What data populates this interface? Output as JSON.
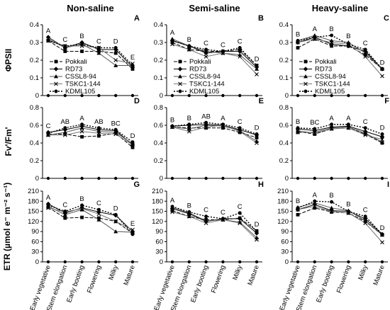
{
  "column_titles": [
    "Non-saline",
    "Semi-saline",
    "Heavy-saline"
  ],
  "row_labels": [
    "ΦPSII",
    "Fv'/Fm'",
    "ETR (µmol e⁻ m⁻² s⁻¹)"
  ],
  "categories": [
    "Early vegetative",
    "Stem elongation",
    "Early booting",
    "Flowering",
    "Milky",
    "Mature"
  ],
  "legend": {
    "entries": [
      "Pokkali",
      "RD73",
      "CSSL8-94",
      "TSKC1-144",
      "KDML105"
    ],
    "markers": [
      "square",
      "diamond",
      "triangle",
      "x",
      "circle"
    ],
    "dashes": [
      "5,2",
      "",
      "",
      "",
      "2,2"
    ]
  },
  "chart_data": [
    {
      "type": "line",
      "panel": "A",
      "row": 0,
      "col": 0,
      "ylim": [
        0,
        0.4
      ],
      "yticks": [
        0,
        0.1,
        0.2,
        0.3,
        0.4
      ],
      "sig_letters": [
        "A",
        "C",
        "B",
        "C",
        "D",
        "E"
      ],
      "legend": true,
      "series": [
        {
          "name": "Pokkali",
          "values": [
            0.31,
            0.25,
            0.25,
            0.25,
            0.24,
            0.15
          ]
        },
        {
          "name": "RD73",
          "values": [
            0.33,
            0.27,
            0.3,
            0.26,
            0.26,
            0.16
          ]
        },
        {
          "name": "CSSL8-94",
          "values": [
            0.32,
            0.27,
            0.29,
            0.24,
            0.17,
            0.17
          ]
        },
        {
          "name": "TSKC1-144",
          "values": [
            0.31,
            0.28,
            0.28,
            0.27,
            0.2,
            0.18
          ]
        },
        {
          "name": "KDML105",
          "values": [
            0.31,
            0.28,
            0.29,
            0.27,
            0.27,
            0.17
          ]
        }
      ]
    },
    {
      "type": "line",
      "panel": "B",
      "row": 0,
      "col": 1,
      "ylim": [
        0,
        0.4
      ],
      "yticks": [
        0,
        0.1,
        0.2,
        0.3,
        0.4
      ],
      "sig_letters": [
        "A",
        "B",
        "C",
        "C",
        "C",
        "D"
      ],
      "legend": true,
      "series": [
        {
          "name": "Pokkali",
          "values": [
            0.3,
            0.26,
            0.25,
            0.25,
            0.26,
            0.17
          ]
        },
        {
          "name": "RD73",
          "values": [
            0.31,
            0.28,
            0.24,
            0.25,
            0.25,
            0.16
          ]
        },
        {
          "name": "CSSL8-94",
          "values": [
            0.32,
            0.28,
            0.25,
            0.24,
            0.23,
            0.15
          ]
        },
        {
          "name": "TSKC1-144",
          "values": [
            0.29,
            0.26,
            0.22,
            0.24,
            0.22,
            0.12
          ]
        },
        {
          "name": "KDML105",
          "values": [
            0.31,
            0.28,
            0.26,
            0.25,
            0.27,
            0.17
          ]
        }
      ]
    },
    {
      "type": "line",
      "panel": "C",
      "row": 0,
      "col": 2,
      "ylim": [
        0,
        0.4
      ],
      "yticks": [
        0,
        0.1,
        0.2,
        0.3,
        0.4
      ],
      "sig_letters": [
        "B",
        "A",
        "B",
        "B",
        "C",
        "D"
      ],
      "legend": true,
      "series": [
        {
          "name": "Pokkali",
          "values": [
            0.27,
            0.32,
            0.28,
            0.28,
            0.23,
            0.15
          ]
        },
        {
          "name": "RD73",
          "values": [
            0.3,
            0.33,
            0.29,
            0.28,
            0.25,
            0.15
          ]
        },
        {
          "name": "CSSL8-94",
          "values": [
            0.31,
            0.34,
            0.31,
            0.3,
            0.24,
            0.15
          ]
        },
        {
          "name": "TSKC1-144",
          "values": [
            0.3,
            0.32,
            0.3,
            0.29,
            0.22,
            0.11
          ]
        },
        {
          "name": "KDML105",
          "values": [
            0.31,
            0.33,
            0.34,
            0.29,
            0.26,
            0.15
          ]
        }
      ]
    },
    {
      "type": "line",
      "panel": "D",
      "row": 1,
      "col": 0,
      "ylim": [
        0,
        0.8
      ],
      "yticks": [
        0,
        0.2,
        0.4,
        0.6,
        0.8
      ],
      "sig_letters": [
        "C",
        "AB",
        "A",
        "AB",
        "BC",
        "D"
      ],
      "series": [
        {
          "name": "Pokkali",
          "values": [
            0.5,
            0.5,
            0.47,
            0.48,
            0.51,
            0.35
          ]
        },
        {
          "name": "RD73",
          "values": [
            0.52,
            0.55,
            0.59,
            0.55,
            0.54,
            0.38
          ]
        },
        {
          "name": "CSSL8-94",
          "values": [
            0.49,
            0.52,
            0.57,
            0.53,
            0.52,
            0.39
          ]
        },
        {
          "name": "TSKC1-144",
          "values": [
            0.49,
            0.49,
            0.53,
            0.51,
            0.5,
            0.38
          ]
        },
        {
          "name": "KDML105",
          "values": [
            0.51,
            0.57,
            0.61,
            0.57,
            0.55,
            0.41
          ]
        }
      ]
    },
    {
      "type": "line",
      "panel": "E",
      "row": 1,
      "col": 1,
      "ylim": [
        0,
        0.8
      ],
      "yticks": [
        0,
        0.2,
        0.4,
        0.6,
        0.8
      ],
      "sig_letters": [
        "B",
        "B",
        "AB",
        "A",
        "C",
        "D"
      ],
      "series": [
        {
          "name": "Pokkali",
          "values": [
            0.58,
            0.57,
            0.57,
            0.57,
            0.52,
            0.46
          ]
        },
        {
          "name": "RD73",
          "values": [
            0.59,
            0.6,
            0.61,
            0.6,
            0.55,
            0.49
          ]
        },
        {
          "name": "CSSL8-94",
          "values": [
            0.58,
            0.56,
            0.6,
            0.59,
            0.54,
            0.42
          ]
        },
        {
          "name": "TSKC1-144",
          "values": [
            0.58,
            0.53,
            0.58,
            0.6,
            0.53,
            0.4
          ]
        },
        {
          "name": "KDML105",
          "values": [
            0.59,
            0.61,
            0.63,
            0.61,
            0.57,
            0.5
          ]
        }
      ]
    },
    {
      "type": "line",
      "panel": "F",
      "row": 1,
      "col": 2,
      "ylim": [
        0,
        0.8
      ],
      "yticks": [
        0,
        0.2,
        0.4,
        0.6,
        0.8
      ],
      "sig_letters": [
        "B",
        "BC",
        "A",
        "A",
        "C",
        "D"
      ],
      "series": [
        {
          "name": "Pokkali",
          "values": [
            0.53,
            0.5,
            0.56,
            0.57,
            0.5,
            0.4
          ]
        },
        {
          "name": "RD73",
          "values": [
            0.56,
            0.54,
            0.58,
            0.59,
            0.53,
            0.47
          ]
        },
        {
          "name": "CSSL8-94",
          "values": [
            0.52,
            0.52,
            0.57,
            0.58,
            0.51,
            0.41
          ]
        },
        {
          "name": "TSKC1-144",
          "values": [
            0.54,
            0.51,
            0.56,
            0.57,
            0.49,
            0.44
          ]
        },
        {
          "name": "KDML105",
          "values": [
            0.57,
            0.56,
            0.61,
            0.61,
            0.57,
            0.5
          ]
        }
      ]
    },
    {
      "type": "line",
      "panel": "G",
      "row": 2,
      "col": 0,
      "ylim": [
        0,
        210
      ],
      "yticks": [
        0,
        30,
        60,
        90,
        120,
        150,
        180,
        210
      ],
      "sig_letters": [
        "A",
        "C",
        "B",
        "C",
        "D",
        "E"
      ],
      "series": [
        {
          "name": "Pokkali",
          "values": [
            162,
            130,
            132,
            130,
            120,
            85
          ]
        },
        {
          "name": "RD73",
          "values": [
            172,
            145,
            160,
            148,
            138,
            90
          ]
        },
        {
          "name": "CSSL8-94",
          "values": [
            165,
            140,
            155,
            125,
            90,
            88
          ]
        },
        {
          "name": "TSKC1-144",
          "values": [
            160,
            148,
            158,
            142,
            120,
            95
          ]
        },
        {
          "name": "KDML105",
          "values": [
            168,
            150,
            168,
            155,
            140,
            82
          ]
        }
      ]
    },
    {
      "type": "line",
      "panel": "H",
      "row": 2,
      "col": 1,
      "ylim": [
        0,
        210
      ],
      "yticks": [
        0,
        30,
        60,
        90,
        120,
        150,
        180,
        210
      ],
      "sig_letters": [
        "A",
        "B",
        "C",
        "C",
        "C",
        "D"
      ],
      "series": [
        {
          "name": "Pokkali",
          "values": [
            152,
            135,
            125,
            125,
            130,
            92
          ]
        },
        {
          "name": "RD73",
          "values": [
            158,
            143,
            120,
            128,
            128,
            85
          ]
        },
        {
          "name": "CSSL8-94",
          "values": [
            162,
            145,
            122,
            125,
            118,
            72
          ]
        },
        {
          "name": "TSKC1-144",
          "values": [
            148,
            135,
            115,
            125,
            115,
            66
          ]
        },
        {
          "name": "KDML105",
          "values": [
            164,
            148,
            135,
            128,
            145,
            90
          ]
        }
      ]
    },
    {
      "type": "line",
      "panel": "I",
      "row": 2,
      "col": 2,
      "ylim": [
        0,
        210
      ],
      "yticks": [
        0,
        30,
        60,
        90,
        120,
        150,
        180,
        210
      ],
      "sig_letters": [
        "B",
        "A",
        "B",
        "B",
        "C",
        "D"
      ],
      "series": [
        {
          "name": "Pokkali",
          "values": [
            140,
            160,
            148,
            145,
            120,
            80
          ]
        },
        {
          "name": "RD73",
          "values": [
            155,
            170,
            152,
            150,
            128,
            82
          ]
        },
        {
          "name": "CSSL8-94",
          "values": [
            162,
            175,
            160,
            152,
            122,
            80
          ]
        },
        {
          "name": "TSKC1-144",
          "values": [
            155,
            165,
            150,
            145,
            115,
            58
          ]
        },
        {
          "name": "KDML105",
          "values": [
            160,
            180,
            178,
            150,
            135,
            82
          ]
        }
      ]
    }
  ]
}
